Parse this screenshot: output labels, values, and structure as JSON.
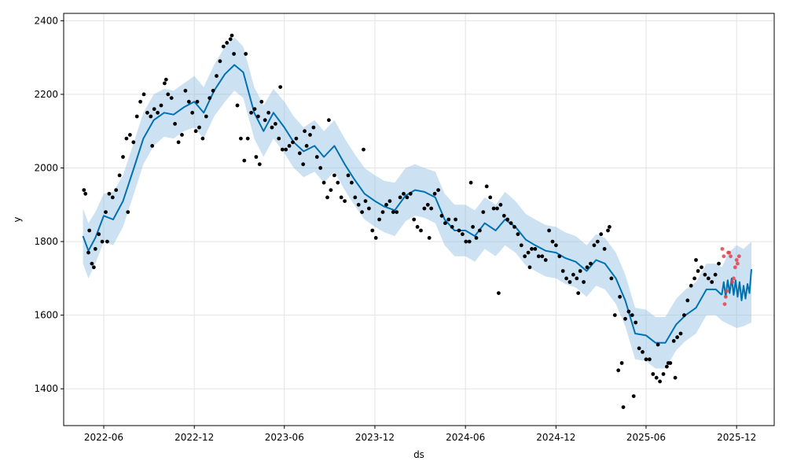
{
  "chart_data": {
    "type": "line",
    "title": "",
    "xlabel": "ds",
    "ylabel": "y",
    "x_range": [
      "2022-03-12",
      "2026-02-15"
    ],
    "ylim": [
      1300,
      2420
    ],
    "grid": true,
    "legend": "none",
    "x_ticks": [
      {
        "date": "2022-06-01",
        "label": "2022-06"
      },
      {
        "date": "2022-12-01",
        "label": "2022-12"
      },
      {
        "date": "2023-06-01",
        "label": "2023-06"
      },
      {
        "date": "2023-12-01",
        "label": "2023-12"
      },
      {
        "date": "2024-06-01",
        "label": "2024-06"
      },
      {
        "date": "2024-12-01",
        "label": "2024-12"
      },
      {
        "date": "2025-06-01",
        "label": "2025-06"
      },
      {
        "date": "2025-12-01",
        "label": "2025-12"
      }
    ],
    "y_ticks": [
      {
        "value": 1400,
        "label": "1400"
      },
      {
        "value": 1600,
        "label": "1600"
      },
      {
        "value": 1800,
        "label": "1800"
      },
      {
        "value": 2000,
        "label": "2000"
      },
      {
        "value": 2200,
        "label": "2200"
      },
      {
        "value": 2400,
        "label": "2400"
      }
    ],
    "colors": {
      "forecast": "#0072B2",
      "interval": "#8fbde0",
      "observed": "#000000",
      "holdout": "#e8414a",
      "grid": "#e3e3e3"
    },
    "forecast": {
      "x": [
        "2022-04-20",
        "2022-05-01",
        "2022-05-15",
        "2022-06-01",
        "2022-06-20",
        "2022-07-10",
        "2022-08-01",
        "2022-08-20",
        "2022-09-10",
        "2022-10-01",
        "2022-10-20",
        "2022-11-10",
        "2022-12-01",
        "2022-12-20",
        "2023-01-10",
        "2023-02-01",
        "2023-02-20",
        "2023-03-10",
        "2023-04-01",
        "2023-04-20",
        "2023-05-10",
        "2023-06-01",
        "2023-06-20",
        "2023-07-10",
        "2023-08-01",
        "2023-08-20",
        "2023-09-10",
        "2023-10-01",
        "2023-10-20",
        "2023-11-10",
        "2023-12-01",
        "2023-12-20",
        "2024-01-10",
        "2024-02-01",
        "2024-02-20",
        "2024-03-10",
        "2024-04-01",
        "2024-04-20",
        "2024-05-10",
        "2024-06-01",
        "2024-06-20",
        "2024-07-10",
        "2024-08-01",
        "2024-08-20",
        "2024-09-10",
        "2024-10-01",
        "2024-10-20",
        "2024-11-10",
        "2024-12-01",
        "2024-12-20",
        "2025-01-10",
        "2025-02-01",
        "2025-02-20",
        "2025-03-10",
        "2025-04-01",
        "2025-04-20",
        "2025-05-10",
        "2025-06-01",
        "2025-06-20",
        "2025-07-10",
        "2025-08-01",
        "2025-08-20",
        "2025-09-10",
        "2025-10-01",
        "2025-10-20",
        "2025-11-01"
      ],
      "yhat": [
        1815,
        1775,
        1810,
        1870,
        1860,
        1910,
        2000,
        2080,
        2130,
        2150,
        2145,
        2165,
        2180,
        2150,
        2210,
        2255,
        2280,
        2260,
        2150,
        2100,
        2150,
        2110,
        2070,
        2045,
        2060,
        2030,
        2060,
        2010,
        1970,
        1930,
        1910,
        1895,
        1885,
        1925,
        1940,
        1935,
        1920,
        1860,
        1830,
        1830,
        1815,
        1850,
        1830,
        1860,
        1840,
        1805,
        1790,
        1775,
        1770,
        1755,
        1745,
        1720,
        1750,
        1740,
        1700,
        1640,
        1550,
        1545,
        1525,
        1525,
        1575,
        1600,
        1620,
        1670,
        1670,
        1655
      ]
    },
    "future_forecast": {
      "x": [
        "2025-11-01",
        "2025-11-05",
        "2025-11-09",
        "2025-11-13",
        "2025-11-17",
        "2025-11-21",
        "2025-11-25",
        "2025-11-29",
        "2025-12-03",
        "2025-12-07",
        "2025-12-11",
        "2025-12-15",
        "2025-12-19",
        "2025-12-23",
        "2025-12-27",
        "2025-12-31"
      ],
      "yhat": [
        1655,
        1690,
        1650,
        1695,
        1660,
        1700,
        1655,
        1695,
        1650,
        1690,
        1640,
        1680,
        1645,
        1685,
        1660,
        1725
      ]
    },
    "interval": {
      "x": [
        "2022-04-20",
        "2022-05-01",
        "2022-05-15",
        "2022-06-01",
        "2022-06-20",
        "2022-07-10",
        "2022-08-01",
        "2022-08-20",
        "2022-09-10",
        "2022-10-01",
        "2022-10-20",
        "2022-11-10",
        "2022-12-01",
        "2022-12-20",
        "2023-01-10",
        "2023-02-01",
        "2023-02-20",
        "2023-03-10",
        "2023-04-01",
        "2023-04-20",
        "2023-05-10",
        "2023-06-01",
        "2023-06-20",
        "2023-07-10",
        "2023-08-01",
        "2023-08-20",
        "2023-09-10",
        "2023-10-01",
        "2023-10-20",
        "2023-11-10",
        "2023-12-01",
        "2023-12-20",
        "2024-01-10",
        "2024-02-01",
        "2024-02-20",
        "2024-03-10",
        "2024-04-01",
        "2024-04-20",
        "2024-05-10",
        "2024-06-01",
        "2024-06-20",
        "2024-07-10",
        "2024-08-01",
        "2024-08-20",
        "2024-09-10",
        "2024-10-01",
        "2024-10-20",
        "2024-11-10",
        "2024-12-01",
        "2024-12-20",
        "2025-01-10",
        "2025-02-01",
        "2025-02-20",
        "2025-03-10",
        "2025-04-01",
        "2025-04-20",
        "2025-05-10",
        "2025-06-01",
        "2025-06-20",
        "2025-07-10",
        "2025-08-01",
        "2025-08-20",
        "2025-09-10",
        "2025-10-01",
        "2025-10-20",
        "2025-11-01",
        "2025-11-15",
        "2025-12-01",
        "2025-12-15",
        "2025-12-31"
      ],
      "upper": [
        1890,
        1850,
        1880,
        1930,
        1935,
        1980,
        2070,
        2150,
        2200,
        2215,
        2210,
        2230,
        2250,
        2220,
        2280,
        2330,
        2355,
        2330,
        2220,
        2170,
        2215,
        2180,
        2140,
        2110,
        2130,
        2100,
        2130,
        2080,
        2040,
        2000,
        1980,
        1965,
        1960,
        2000,
        2010,
        2000,
        1990,
        1930,
        1900,
        1900,
        1885,
        1920,
        1900,
        1935,
        1910,
        1875,
        1860,
        1845,
        1840,
        1825,
        1815,
        1790,
        1820,
        1810,
        1770,
        1710,
        1620,
        1615,
        1595,
        1595,
        1645,
        1670,
        1690,
        1740,
        1740,
        1730,
        1770,
        1790,
        1780,
        1800
      ],
      "lower": [
        1740,
        1700,
        1740,
        1800,
        1790,
        1840,
        1930,
        2010,
        2060,
        2085,
        2080,
        2100,
        2110,
        2080,
        2140,
        2180,
        2210,
        2190,
        2080,
        2030,
        2080,
        2040,
        2000,
        1975,
        1990,
        1960,
        1990,
        1940,
        1900,
        1860,
        1840,
        1825,
        1815,
        1855,
        1870,
        1865,
        1850,
        1790,
        1760,
        1760,
        1745,
        1780,
        1760,
        1790,
        1770,
        1735,
        1720,
        1705,
        1700,
        1685,
        1675,
        1650,
        1680,
        1670,
        1630,
        1570,
        1480,
        1475,
        1455,
        1455,
        1505,
        1530,
        1550,
        1600,
        1600,
        1585,
        1575,
        1565,
        1570,
        1580
      ]
    },
    "observed": {
      "x": [
        "2022-04-25",
        "2022-05-01",
        "2022-05-08",
        "2022-05-15",
        "2022-05-22",
        "2022-05-29",
        "2022-06-05",
        "2022-06-12",
        "2022-06-19",
        "2022-06-26",
        "2022-07-03",
        "2022-07-10",
        "2022-07-17",
        "2022-07-24",
        "2022-07-31",
        "2022-08-07",
        "2022-08-14",
        "2022-08-21",
        "2022-08-28",
        "2022-09-04",
        "2022-09-11",
        "2022-09-18",
        "2022-09-25",
        "2022-10-02",
        "2022-10-09",
        "2022-10-16",
        "2022-10-23",
        "2022-10-30",
        "2022-11-06",
        "2022-11-13",
        "2022-11-20",
        "2022-11-27",
        "2022-12-04",
        "2022-12-11",
        "2022-12-18",
        "2022-12-25",
        "2023-01-01",
        "2023-01-08",
        "2023-01-15",
        "2023-01-22",
        "2023-01-29",
        "2023-02-05",
        "2023-02-12",
        "2023-02-19",
        "2023-02-26",
        "2023-03-05",
        "2023-03-12",
        "2023-03-19",
        "2023-03-26",
        "2023-04-02",
        "2023-04-09",
        "2023-04-16",
        "2023-04-23",
        "2023-04-30",
        "2023-05-07",
        "2023-05-14",
        "2023-05-21",
        "2023-05-28",
        "2023-06-04",
        "2023-06-11",
        "2023-06-18",
        "2023-06-25",
        "2023-07-02",
        "2023-07-09",
        "2023-07-16",
        "2023-07-23",
        "2023-07-30",
        "2023-08-06",
        "2023-08-13",
        "2023-08-20",
        "2023-08-27",
        "2023-09-03",
        "2023-09-10",
        "2023-09-17",
        "2023-09-24",
        "2023-10-01",
        "2023-10-08",
        "2023-10-15",
        "2023-10-22",
        "2023-10-29",
        "2023-11-05",
        "2023-11-12",
        "2023-11-19",
        "2023-11-26",
        "2023-12-03",
        "2023-12-10",
        "2023-12-17",
        "2023-12-24",
        "2023-12-31",
        "2024-01-07",
        "2024-01-14",
        "2024-01-21",
        "2024-01-28",
        "2024-02-04",
        "2024-02-11",
        "2024-02-18",
        "2024-02-25",
        "2024-03-03",
        "2024-03-10",
        "2024-03-17",
        "2024-03-24",
        "2024-03-31",
        "2024-04-07",
        "2024-04-14",
        "2024-04-21",
        "2024-04-28",
        "2024-05-05",
        "2024-05-12",
        "2024-05-19",
        "2024-05-26",
        "2024-06-02",
        "2024-06-09",
        "2024-06-16",
        "2024-06-23",
        "2024-06-30",
        "2024-07-07",
        "2024-07-14",
        "2024-07-21",
        "2024-07-28",
        "2024-08-04",
        "2024-08-11",
        "2024-08-18",
        "2024-08-25",
        "2024-09-01",
        "2024-09-08",
        "2024-09-15",
        "2024-09-22",
        "2024-09-29",
        "2024-10-06",
        "2024-10-13",
        "2024-10-20",
        "2024-10-27",
        "2024-11-03",
        "2024-11-10",
        "2024-11-17",
        "2024-11-24",
        "2024-12-01",
        "2024-12-08",
        "2024-12-15",
        "2024-12-22",
        "2024-12-29",
        "2025-01-05",
        "2025-01-12",
        "2025-01-19",
        "2025-01-26",
        "2025-02-02",
        "2025-02-09",
        "2025-02-16",
        "2025-02-23",
        "2025-03-02",
        "2025-03-09",
        "2025-03-16",
        "2025-03-23",
        "2025-03-30",
        "2025-04-06",
        "2025-04-13",
        "2025-04-20",
        "2025-04-27",
        "2025-05-04",
        "2025-05-11",
        "2025-05-18",
        "2025-05-25",
        "2025-06-01",
        "2025-06-08",
        "2025-06-15",
        "2025-06-22",
        "2025-06-29",
        "2025-07-06",
        "2025-07-13",
        "2025-07-20",
        "2025-07-27",
        "2025-08-03",
        "2025-08-10",
        "2025-08-17",
        "2025-08-24",
        "2025-08-31",
        "2025-09-07",
        "2025-09-14",
        "2025-09-21",
        "2025-09-28",
        "2025-10-05",
        "2025-10-12",
        "2025-10-19",
        "2025-10-26",
        "2022-04-22",
        "2022-05-03",
        "2022-05-12",
        "2022-06-08",
        "2022-07-20",
        "2022-09-07",
        "2022-10-05",
        "2022-12-07",
        "2023-02-15",
        "2023-03-15",
        "2023-04-05",
        "2023-04-12",
        "2023-05-24",
        "2023-07-12",
        "2023-08-30",
        "2023-11-08",
        "2024-03-20",
        "2024-06-12",
        "2024-08-07",
        "2024-10-09",
        "2025-01-15",
        "2025-03-19",
        "2025-04-09",
        "2025-04-16",
        "2025-05-07",
        "2025-06-25",
        "2025-07-16",
        "2025-07-30",
        "2025-09-10"
      ],
      "y": [
        1930,
        1770,
        1740,
        1780,
        1820,
        1800,
        1880,
        1930,
        1920,
        1940,
        1980,
        2030,
        2080,
        2090,
        2070,
        2140,
        2180,
        2200,
        2150,
        2140,
        2160,
        2150,
        2170,
        2230,
        2200,
        2190,
        2120,
        2070,
        2090,
        2210,
        2180,
        2150,
        2100,
        2110,
        2080,
        2140,
        2190,
        2210,
        2250,
        2290,
        2330,
        2340,
        2350,
        2310,
        2170,
        2080,
        2020,
        2080,
        2150,
        2160,
        2140,
        2180,
        2130,
        2150,
        2110,
        2120,
        2080,
        2050,
        2050,
        2060,
        2070,
        2080,
        2040,
        2010,
        2060,
        2090,
        2110,
        2030,
        2000,
        1960,
        1920,
        1940,
        1980,
        1960,
        1920,
        1910,
        1980,
        1960,
        1920,
        1900,
        1880,
        1910,
        1890,
        1830,
        1810,
        1860,
        1880,
        1900,
        1910,
        1880,
        1880,
        1920,
        1930,
        1920,
        1930,
        1860,
        1840,
        1830,
        1890,
        1900,
        1890,
        1930,
        1940,
        1870,
        1850,
        1860,
        1840,
        1860,
        1830,
        1820,
        1800,
        1800,
        1840,
        1810,
        1830,
        1880,
        1950,
        1920,
        1890,
        1890,
        1900,
        1870,
        1860,
        1850,
        1840,
        1820,
        1790,
        1760,
        1770,
        1780,
        1780,
        1760,
        1760,
        1750,
        1830,
        1800,
        1790,
        1760,
        1720,
        1700,
        1690,
        1710,
        1700,
        1720,
        1690,
        1730,
        1740,
        1790,
        1800,
        1820,
        1780,
        1830,
        1700,
        1600,
        1450,
        1470,
        1590,
        1610,
        1600,
        1580,
        1510,
        1500,
        1480,
        1480,
        1440,
        1430,
        1420,
        1440,
        1460,
        1470,
        1530,
        1540,
        1550,
        1600,
        1640,
        1680,
        1700,
        1720,
        1730,
        1710,
        1700,
        1690,
        1710,
        1740,
        1940,
        1830,
        1730,
        1800,
        1880,
        2060,
        2240,
        2180,
        2360,
        2310,
        2030,
        2010,
        2220,
        2100,
        2130,
        2050,
        1810,
        1960,
        1660,
        1730,
        1660,
        1840,
        1650,
        1350,
        1380,
        1520,
        1470,
        1430,
        1750
      ],
      "point_color": "#000000"
    },
    "holdout": {
      "x": [
        "2025-11-02",
        "2025-11-05",
        "2025-11-07",
        "2025-11-09",
        "2025-11-11",
        "2025-11-14",
        "2025-11-16",
        "2025-11-19",
        "2025-11-22",
        "2025-11-25",
        "2025-11-28",
        "2025-12-01",
        "2025-12-03",
        "2025-12-06"
      ],
      "y": [
        1780,
        1760,
        1630,
        1650,
        1665,
        1770,
        1770,
        1760,
        1690,
        1700,
        1730,
        1750,
        1740,
        1760
      ],
      "point_color": "#e8414a"
    }
  }
}
